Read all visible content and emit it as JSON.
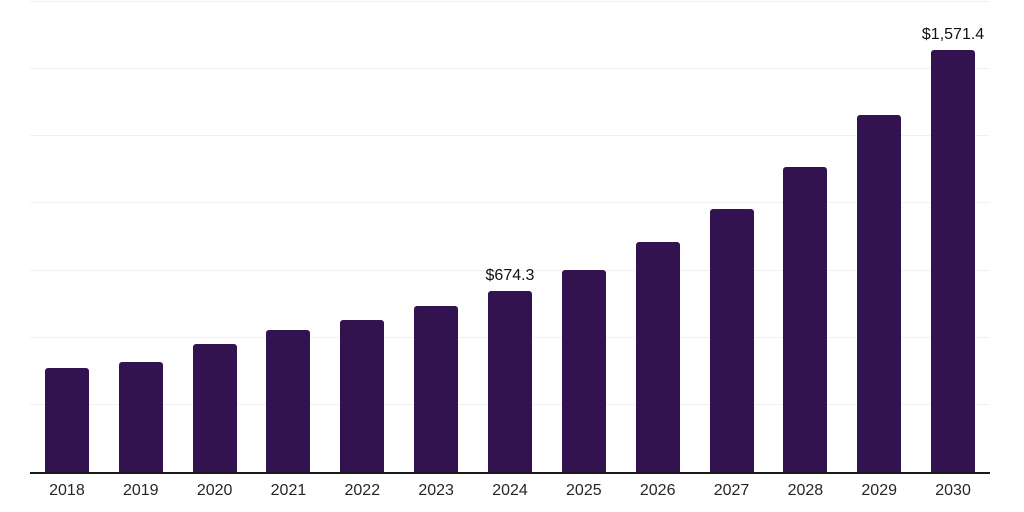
{
  "chart_data": {
    "type": "bar",
    "title": "",
    "xlabel": "",
    "ylabel": "",
    "categories": [
      "2018",
      "2019",
      "2020",
      "2021",
      "2022",
      "2023",
      "2024",
      "2025",
      "2026",
      "2027",
      "2028",
      "2029",
      "2030"
    ],
    "values": [
      389,
      410,
      477,
      530,
      567,
      617,
      674.3,
      752,
      855,
      980,
      1134,
      1330,
      1571.4
    ],
    "value_labels": [
      "",
      "",
      "",
      "",
      "",
      "",
      "$674.3",
      "",
      "",
      "",
      "",
      "",
      "$1,571.4"
    ],
    "ylim": [
      0,
      1750
    ],
    "gridline_interval": 250,
    "grid": "horizontal",
    "legend": "none",
    "colors": {
      "bar": "#33134F",
      "gridline": "#f1f1f1",
      "axis_line": "#1a1a1a",
      "tick_label": "#262626",
      "value_label": "#111111",
      "background": "#ffffff"
    }
  }
}
